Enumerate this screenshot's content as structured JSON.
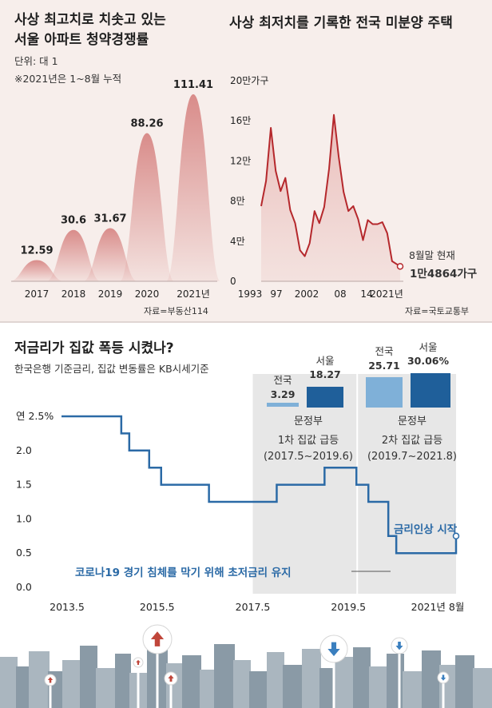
{
  "colors": {
    "panel_bg": "#f7eeeb",
    "peak_fill": "#d98c8a",
    "line_red": "#b5282c",
    "rate_blue": "#2b6aa6",
    "bar_national": "#7fb0d8",
    "bar_seoul": "#1f5f9a",
    "band_gray": "#e7e7e7"
  },
  "top_left": {
    "title_line1": "사상 최고치로 치솟고 있는",
    "title_line2": "서울 아파트 청약경쟁률",
    "unit": "단위: 대 1",
    "note": "※2021년은 1~8월 누적",
    "source": "자료=부동산114",
    "chart_data": {
      "type": "area",
      "categories": [
        "2017",
        "2018",
        "2019",
        "2020",
        "2021년"
      ],
      "values": [
        12.59,
        30.6,
        31.67,
        88.26,
        111.41
      ],
      "value_labels": [
        "12.59",
        "30.6",
        "31.67",
        "88.26",
        "111.41"
      ],
      "ylim": [
        0,
        120
      ],
      "grid": false
    }
  },
  "top_right": {
    "title": "사상 최저치를 기록한 전국 미분양 주택",
    "source": "자료=국토교통부",
    "annotation_line1": "8월말 현재",
    "annotation_line2": "1만4864가구",
    "ytick_labels": [
      "0",
      "4만",
      "8만",
      "12만",
      "16만",
      "20만가구"
    ],
    "xtick_labels": [
      "1993",
      "97",
      "2002",
      "08",
      "14",
      "2021년"
    ],
    "chart_data": {
      "type": "line",
      "x": [
        1993,
        1994,
        1995,
        1996,
        1997,
        1998,
        1999,
        2000,
        2001,
        2002,
        2003,
        2004,
        2005,
        2006,
        2007,
        2008,
        2009,
        2010,
        2011,
        2012,
        2013,
        2014,
        2015,
        2016,
        2017,
        2018,
        2019,
        2020,
        2021.67
      ],
      "y": [
        75000,
        100000,
        153000,
        110000,
        90000,
        103000,
        71000,
        58000,
        31000,
        25000,
        38000,
        70000,
        58000,
        74000,
        112000,
        166000,
        124000,
        89000,
        70000,
        75000,
        62000,
        41000,
        61000,
        57000,
        57000,
        59000,
        48000,
        20000,
        14864
      ],
      "xlim": [
        1993,
        2021.67
      ],
      "ylim": [
        0,
        200000
      ],
      "grid": false
    }
  },
  "bottom": {
    "title": "저금리가 집값 폭등 시켰나?",
    "subtitle": "한국은행 기준금리, 집값 변동률은 KB시세기준",
    "ytick_labels": [
      "연 2.5%",
      "2.0",
      "1.5",
      "1.0",
      "0.5",
      "0.0"
    ],
    "xtick_labels": [
      "2013.5",
      "2015.5",
      "2017.5",
      "2019.5",
      "2021년 8월"
    ],
    "period1": {
      "label_line1": "문정부",
      "label_line2": "1차 집값 급등",
      "label_line3": "(2017.5~2019.6)",
      "national_label": "전국",
      "national_value": "3.29",
      "seoul_label": "서울",
      "seoul_value": "18.27"
    },
    "period2": {
      "label_line1": "문정부",
      "label_line2": "2차 집값 급등",
      "label_line3": "(2019.7~2021.8)",
      "national_label": "전국",
      "national_value": "25.71",
      "seoul_label": "서울",
      "seoul_value": "30.06%"
    },
    "annotation_covid": "코로나19 경기 침체를 막기 위해 초저금리 유지",
    "annotation_hike": "금리인상 시작",
    "chart_data": {
      "type": "line",
      "x": [
        "2013-05",
        "2014-08",
        "2014-10",
        "2015-03",
        "2015-06",
        "2016-06",
        "2017-05",
        "2017-11",
        "2018-11",
        "2019-07",
        "2019-10",
        "2020-03",
        "2020-05",
        "2021-08"
      ],
      "y": [
        2.5,
        2.25,
        2.0,
        1.75,
        1.5,
        1.25,
        1.25,
        1.5,
        1.75,
        1.5,
        1.25,
        0.75,
        0.5,
        0.75
      ],
      "line_shape": "step",
      "xlim": [
        "2013-05",
        "2021-08"
      ],
      "ylim": [
        0,
        2.5
      ],
      "grid": false,
      "bar_groups": [
        {
          "period": "2017.5~2019.6",
          "national": 3.29,
          "seoul": 18.27
        },
        {
          "period": "2019.7~2021.8",
          "national": 25.71,
          "seoul": 30.06
        }
      ]
    }
  }
}
